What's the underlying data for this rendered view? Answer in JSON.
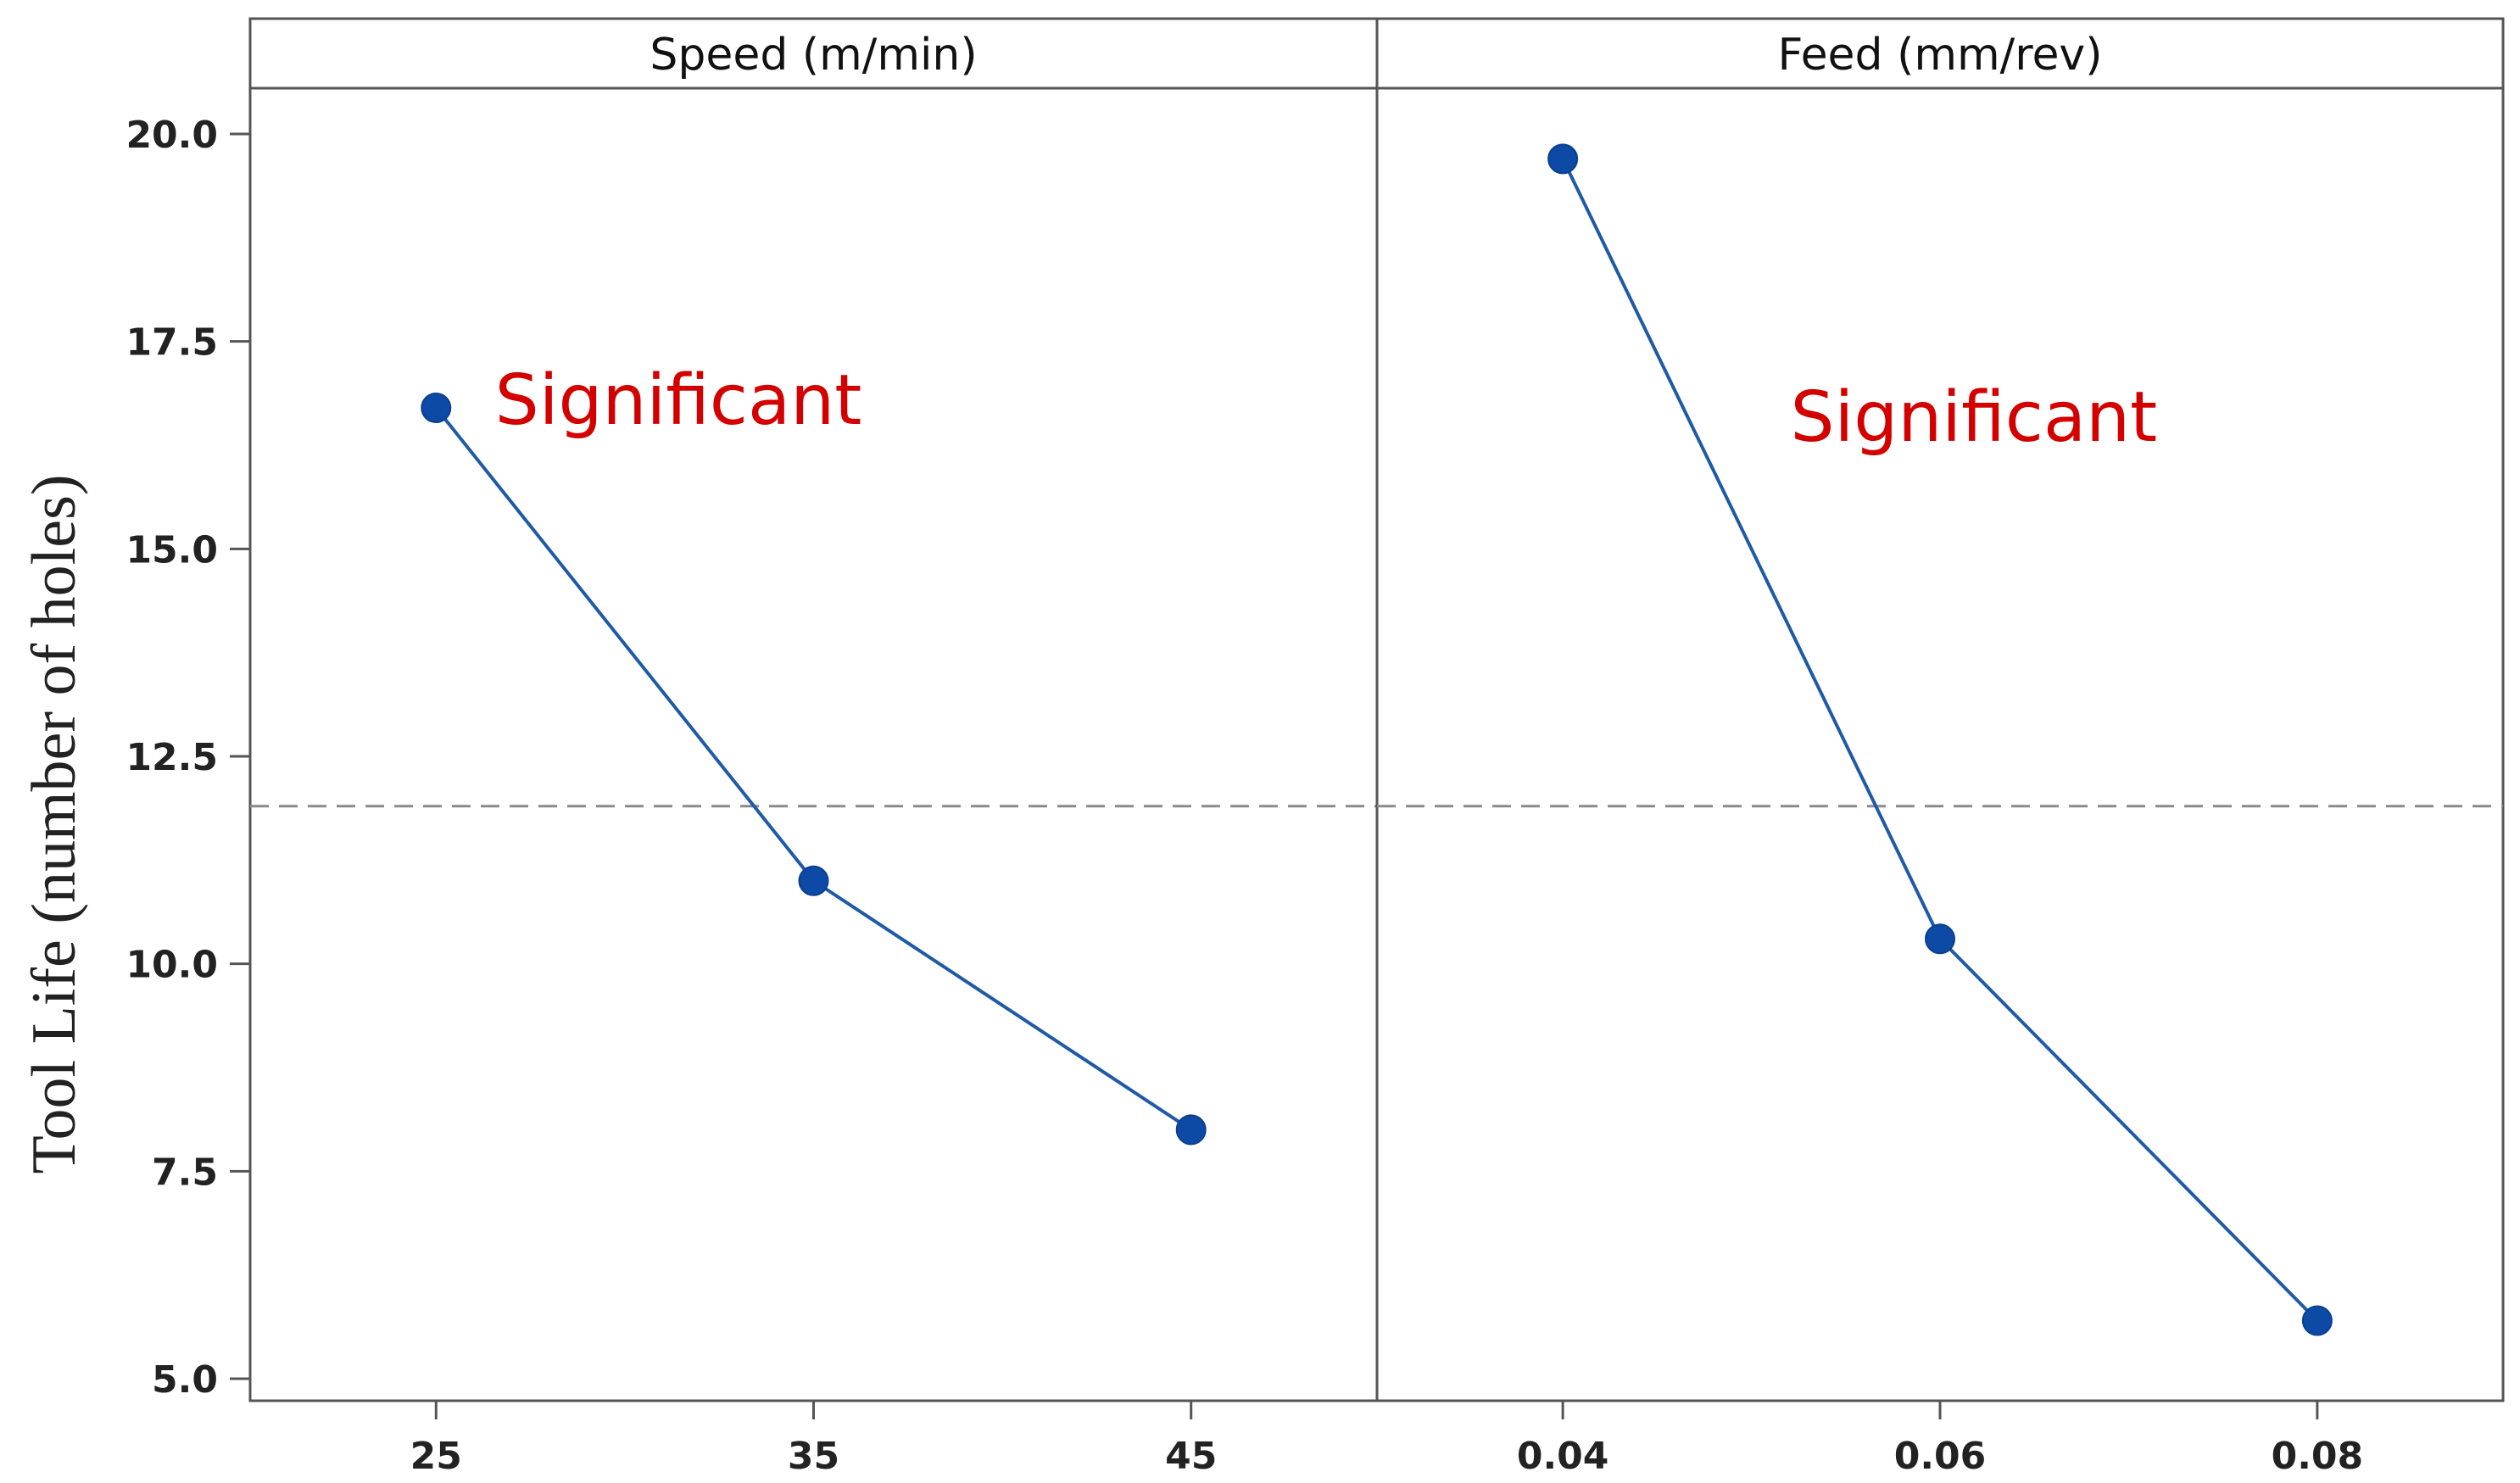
{
  "chart_data": {
    "type": "line",
    "chart_kind": "main effects plot",
    "ylabel": "Tool Life (number of holes)",
    "ylim": [
      4.6,
      21.3
    ],
    "yticks": [
      5.0,
      7.5,
      10.0,
      12.5,
      15.0,
      17.5,
      20.0
    ],
    "ytick_labels": [
      "5.0",
      "7.5",
      "10.0",
      "12.5",
      "15.0",
      "17.5",
      "20.0"
    ],
    "mean_line": 11.9,
    "line_color": "#1f5aa6",
    "marker_color": "#0d4aa6",
    "annotation_color": "#d40000",
    "panels": [
      {
        "title": "Speed (m/min)",
        "categories": [
          "25",
          "35",
          "45"
        ],
        "values": [
          16.7,
          11.0,
          8.0
        ],
        "annotation": "Significant"
      },
      {
        "title": "Feed (mm/rev)",
        "categories": [
          "0.04",
          "0.06",
          "0.08"
        ],
        "values": [
          19.7,
          10.3,
          5.7
        ],
        "annotation": "Significant"
      }
    ]
  }
}
